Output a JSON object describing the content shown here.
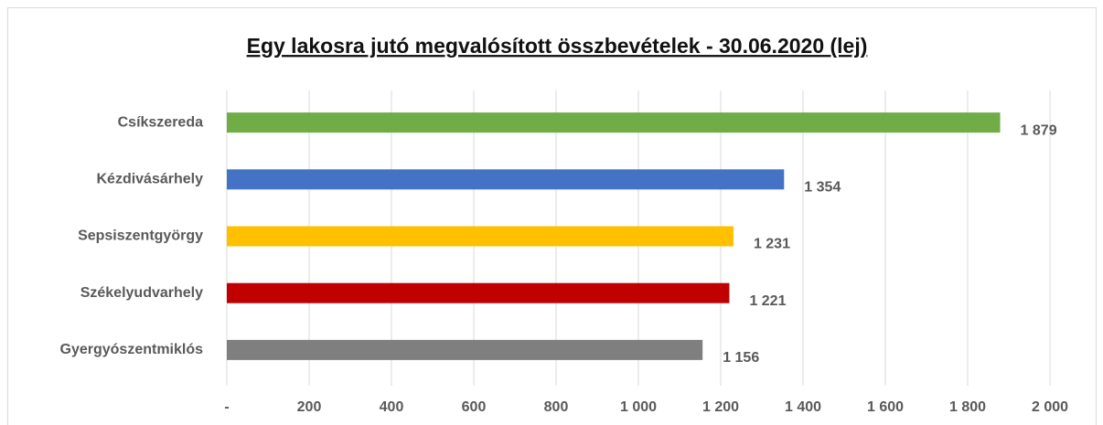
{
  "chart_data": {
    "type": "bar",
    "orientation": "horizontal",
    "title": "Egy lakosra jutó megvalósított összbevételek - 30.06.2020 (lej)",
    "categories": [
      "Csíkszereda",
      "Kézdivásárhely",
      "Sepsiszentgyörgy",
      "Székelyudvarhely",
      "Gyergyószentmiklós"
    ],
    "values": [
      1879,
      1354,
      1231,
      1221,
      1156
    ],
    "value_labels": [
      "1 879",
      "1 354",
      "1 231",
      "1 221",
      "1 156"
    ],
    "colors": [
      "#70ad47",
      "#4472c4",
      "#ffc000",
      "#c00000",
      "#7f7f7f"
    ],
    "xlim": [
      0,
      2000
    ],
    "xticks": [
      {
        "value": 0,
        "label": "-"
      },
      200,
      400,
      600,
      800,
      {
        "value": 1000,
        "label": "1 000"
      },
      {
        "value": 1200,
        "label": "1 200"
      },
      {
        "value": 1400,
        "label": "1 400"
      },
      {
        "value": 1600,
        "label": "1 600"
      },
      {
        "value": 1800,
        "label": "1 800"
      },
      {
        "value": 2000,
        "label": "2 000"
      }
    ],
    "grid": true
  }
}
